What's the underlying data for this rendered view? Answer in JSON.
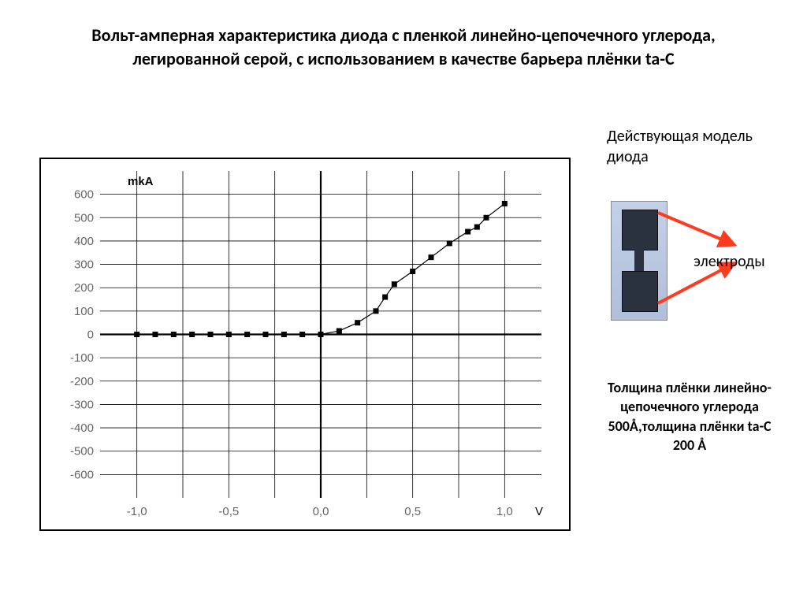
{
  "title": "Вольт-амперная характеристика диода с пленкой линейно-цепочечного углерода, легированной серой, с использованием в качестве барьера плёнки ta-C",
  "labels": {
    "model": "Действующая модель диода",
    "electrodes": "электроды",
    "thickness": "Толщина плёнки линейно-цепочечного углерода 500Å,толщина плёнки ta-C 200 Å"
  },
  "chart": {
    "type": "scatter-line",
    "x_label": "V",
    "y_label": "mkA",
    "xlim": [
      -1.2,
      1.2
    ],
    "ylim": [
      -700,
      700
    ],
    "x_ticks": [
      -1.0,
      -0.5,
      0.0,
      0.5,
      1.0
    ],
    "x_tick_labels": [
      "-1,0",
      "-0,5",
      "0,0",
      "0,5",
      "1,0"
    ],
    "y_ticks": [
      -600,
      -500,
      -400,
      -300,
      -200,
      -100,
      0,
      100,
      200,
      300,
      400,
      500,
      600
    ],
    "y_tick_labels": [
      "-600",
      "-500",
      "-400",
      "-300",
      "-200",
      "-100",
      "0",
      "100",
      "200",
      "300",
      "400",
      "500",
      "600"
    ],
    "grid_x": [
      -1.0,
      -0.75,
      -0.5,
      -0.25,
      0.0,
      0.25,
      0.5,
      0.75,
      1.0
    ],
    "data": [
      {
        "x": -1.0,
        "y": 0
      },
      {
        "x": -0.9,
        "y": 0
      },
      {
        "x": -0.8,
        "y": 0
      },
      {
        "x": -0.7,
        "y": 0
      },
      {
        "x": -0.6,
        "y": 0
      },
      {
        "x": -0.5,
        "y": 0
      },
      {
        "x": -0.4,
        "y": 0
      },
      {
        "x": -0.3,
        "y": 0
      },
      {
        "x": -0.2,
        "y": 0
      },
      {
        "x": -0.1,
        "y": 0
      },
      {
        "x": 0.0,
        "y": 0
      },
      {
        "x": 0.1,
        "y": 15
      },
      {
        "x": 0.2,
        "y": 50
      },
      {
        "x": 0.3,
        "y": 100
      },
      {
        "x": 0.35,
        "y": 160
      },
      {
        "x": 0.4,
        "y": 215
      },
      {
        "x": 0.5,
        "y": 270
      },
      {
        "x": 0.6,
        "y": 330
      },
      {
        "x": 0.7,
        "y": 390
      },
      {
        "x": 0.8,
        "y": 440
      },
      {
        "x": 0.85,
        "y": 460
      },
      {
        "x": 0.9,
        "y": 500
      },
      {
        "x": 1.0,
        "y": 560
      }
    ],
    "background_color": "#ffffff",
    "grid_color": "#000000",
    "grid_width": 0.8,
    "axis_color": "#000000",
    "axis_width": 2.2,
    "marker_style": "square",
    "marker_size": 7,
    "marker_color": "#000000",
    "line_color": "#000000",
    "line_width": 1.2,
    "tick_fontsize": 15,
    "label_fontsize": 15,
    "tick_color": "#666666"
  },
  "arrows": {
    "color": "#ff3b1f",
    "stroke_width": 4
  }
}
